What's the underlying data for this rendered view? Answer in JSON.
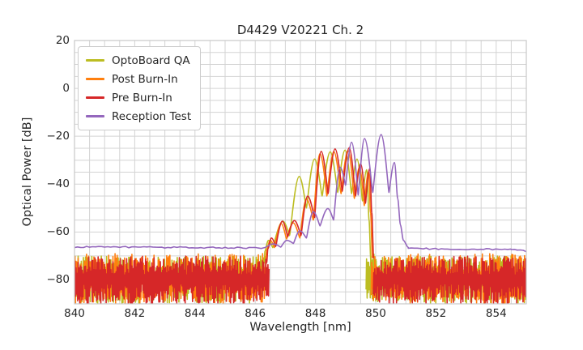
{
  "chart_data": {
    "type": "line",
    "title": "D4429 V20221 Ch. 2",
    "xlabel": "Wavelength [nm]",
    "ylabel": "Optical Power [dB]",
    "xlim": [
      840,
      855
    ],
    "ylim": [
      -90,
      20
    ],
    "xtick_values": [
      840,
      842,
      844,
      846,
      848,
      850,
      852,
      854
    ],
    "xtick_labels": [
      "840",
      "842",
      "844",
      "846",
      "848",
      "850",
      "852",
      "854"
    ],
    "ytick_values": [
      20,
      0,
      -20,
      -40,
      -60,
      -80
    ],
    "ytick_labels": [
      "20",
      "0",
      "−20",
      "−40",
      "−60",
      "−80"
    ],
    "grid": {
      "x_step": 0.5,
      "y_step": 5,
      "color": "#d3d3d3",
      "border_color": "#c9c9c9"
    },
    "legend_position": "upper left",
    "background": "#ffffff",
    "series": [
      {
        "name": "OptoBoard QA",
        "color": "#bcbd22",
        "linewidth": 1.6,
        "points": [
          [
            846.3,
            -73
          ],
          [
            846.32,
            -68
          ],
          [
            846.44,
            -63.5
          ],
          [
            846.58,
            -66.5
          ],
          [
            846.92,
            -55.5
          ],
          [
            847.14,
            -61.5
          ],
          [
            847.46,
            -36.8
          ],
          [
            847.7,
            -50
          ],
          [
            847.97,
            -29.5
          ],
          [
            848.22,
            -45
          ],
          [
            848.49,
            -26.5
          ],
          [
            848.74,
            -43.5
          ],
          [
            848.98,
            -25.8
          ],
          [
            849.2,
            -44
          ],
          [
            849.38,
            -29.5
          ],
          [
            849.56,
            -47
          ],
          [
            849.7,
            -34
          ],
          [
            849.78,
            -55
          ],
          [
            849.84,
            -72
          ]
        ],
        "noise": [
          {
            "from": 840,
            "to": 846.35,
            "top": -74,
            "top_jitter": 4,
            "bottom": -81,
            "bottom_jitter": 9
          },
          {
            "from": 849.68,
            "to": 850.0,
            "top": -71.5,
            "top_jitter": 3,
            "bottom": -84,
            "bottom_jitter": 6
          },
          {
            "from": 850.0,
            "to": 855,
            "top": -74,
            "top_jitter": 4,
            "bottom": -81,
            "bottom_jitter": 9
          }
        ]
      },
      {
        "name": "Post Burn-In",
        "color": "#ff7f0e",
        "linewidth": 1.6,
        "points": [
          [
            846.34,
            -73
          ],
          [
            846.38,
            -67.5
          ],
          [
            846.5,
            -63.5
          ],
          [
            846.64,
            -66.5
          ],
          [
            846.86,
            -56.5
          ],
          [
            847.04,
            -63
          ],
          [
            847.26,
            -56.2
          ],
          [
            847.48,
            -62.5
          ],
          [
            847.7,
            -46.2
          ],
          [
            847.93,
            -55
          ],
          [
            848.15,
            -27.3
          ],
          [
            848.38,
            -45
          ],
          [
            848.61,
            -26.4
          ],
          [
            848.85,
            -44
          ],
          [
            849.08,
            -26
          ],
          [
            849.29,
            -46
          ],
          [
            849.46,
            -33
          ],
          [
            849.62,
            -49
          ],
          [
            849.76,
            -35
          ],
          [
            849.83,
            -52
          ],
          [
            849.89,
            -71
          ]
        ],
        "noise": [
          {
            "from": 840,
            "to": 846.4,
            "top": -73.5,
            "top_jitter": 4.5,
            "bottom": -81,
            "bottom_jitter": 9
          },
          {
            "from": 849.85,
            "to": 855,
            "top": -73.5,
            "top_jitter": 4.5,
            "bottom": -81,
            "bottom_jitter": 9
          }
        ]
      },
      {
        "name": "Pre Burn-In",
        "color": "#d62728",
        "linewidth": 1.6,
        "points": [
          [
            846.38,
            -73
          ],
          [
            846.42,
            -67
          ],
          [
            846.54,
            -62.5
          ],
          [
            846.68,
            -66
          ],
          [
            846.9,
            -55.5
          ],
          [
            847.08,
            -62
          ],
          [
            847.3,
            -55.2
          ],
          [
            847.52,
            -61.5
          ],
          [
            847.74,
            -45
          ],
          [
            847.97,
            -54
          ],
          [
            848.19,
            -26.3
          ],
          [
            848.42,
            -44
          ],
          [
            848.65,
            -25.3
          ],
          [
            848.89,
            -43
          ],
          [
            849.12,
            -24.8
          ],
          [
            849.33,
            -45
          ],
          [
            849.5,
            -31.5
          ],
          [
            849.66,
            -48
          ],
          [
            849.8,
            -33.5
          ],
          [
            849.87,
            -52
          ],
          [
            849.93,
            -71
          ]
        ],
        "noise": [
          {
            "from": 840,
            "to": 846.45,
            "top": -74,
            "top_jitter": 4,
            "bottom": -81.5,
            "bottom_jitter": 9
          },
          {
            "from": 849.92,
            "to": 855,
            "top": -74,
            "top_jitter": 4,
            "bottom": -81.5,
            "bottom_jitter": 9
          }
        ]
      },
      {
        "name": "Reception Test",
        "color": "#9467bd",
        "linewidth": 1.6,
        "points": [
          [
            846.28,
            -66.6
          ],
          [
            846.6,
            -65
          ],
          [
            846.85,
            -66.3
          ],
          [
            847.05,
            -63.5
          ],
          [
            847.27,
            -64.8
          ],
          [
            847.48,
            -59.5
          ],
          [
            847.7,
            -62.5
          ],
          [
            847.93,
            -51.5
          ],
          [
            848.15,
            -57.5
          ],
          [
            848.41,
            -50.2
          ],
          [
            848.6,
            -55
          ],
          [
            848.82,
            -33
          ],
          [
            849.0,
            -40.5
          ],
          [
            849.2,
            -22.5
          ],
          [
            849.42,
            -44.5
          ],
          [
            849.63,
            -21
          ],
          [
            849.9,
            -43.5
          ],
          [
            850.18,
            -19.3
          ],
          [
            850.44,
            -43.5
          ],
          [
            850.62,
            -31
          ],
          [
            850.73,
            -46
          ],
          [
            850.82,
            -57
          ],
          [
            850.92,
            -63.5
          ],
          [
            851.08,
            -66.4
          ]
        ],
        "noise": [],
        "jitter": [
          {
            "from": 840,
            "to": 846.28,
            "db_from": -66.2,
            "db_to": -66.7,
            "amp": 0.6
          },
          {
            "from": 851.08,
            "to": 854.5,
            "db_from": -66.9,
            "db_to": -67.3,
            "amp": 0.6
          },
          {
            "from": 854.5,
            "to": 855,
            "db_from": -67.3,
            "db_to": -68.0,
            "amp": 0.6
          }
        ]
      }
    ]
  }
}
